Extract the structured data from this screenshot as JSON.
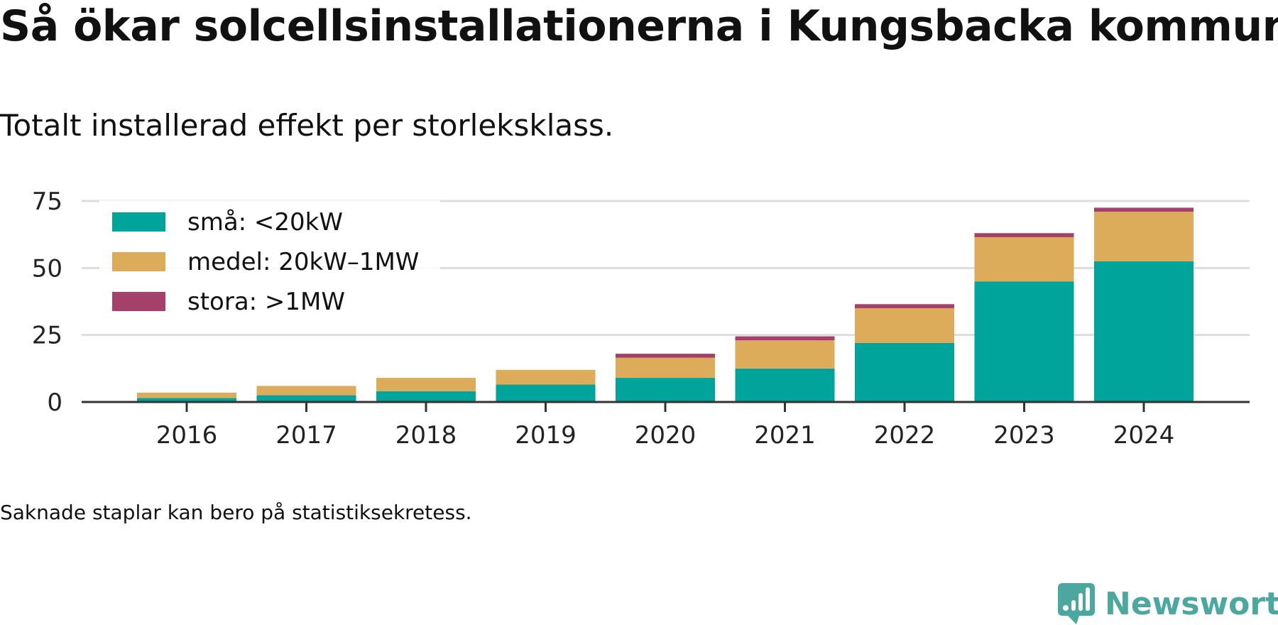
{
  "title": "Så ökar solcellsinstallationerna i Kungsbacka kommun",
  "subtitle": "Totalt installerad effekt per storleksklass.",
  "footnote": "Saknade staplar kan bero på statistiksekretess.",
  "brand": {
    "name": "Newsworthy",
    "icon": "newsworthy-logo-icon",
    "color": "#4aa89f"
  },
  "chart_data": {
    "type": "bar",
    "stacked": true,
    "categories": [
      "2016",
      "2017",
      "2018",
      "2019",
      "2020",
      "2021",
      "2022",
      "2023",
      "2024"
    ],
    "series": [
      {
        "name": "små: <20kW",
        "color": "#00a49a",
        "values": [
          1.5,
          2.5,
          4.0,
          6.5,
          9.0,
          12.5,
          22.0,
          45.0,
          52.5
        ]
      },
      {
        "name": "medel: 20kW–1MW",
        "color": "#dcac5a",
        "values": [
          2.0,
          3.5,
          5.0,
          5.5,
          7.5,
          10.5,
          13.0,
          16.5,
          18.5
        ]
      },
      {
        "name": "stora: >1MW",
        "color": "#a5406a",
        "values": [
          0,
          0,
          0,
          0,
          1.5,
          1.5,
          1.5,
          1.5,
          1.5
        ]
      }
    ],
    "yticks": [
      0,
      25,
      50,
      75
    ],
    "ylim": [
      0,
      80
    ],
    "xlabel": "",
    "ylabel": "",
    "grid": true,
    "legend_position": "top-left"
  }
}
